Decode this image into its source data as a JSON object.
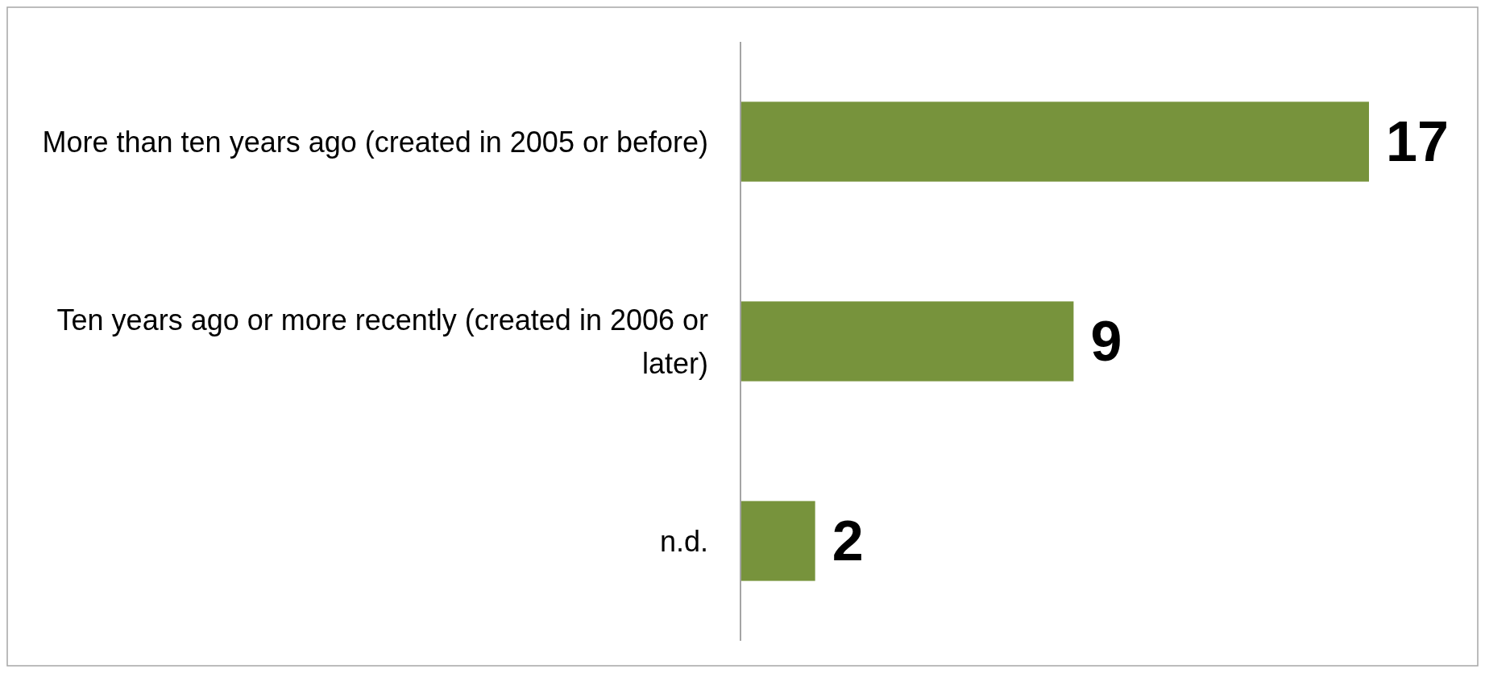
{
  "chart_data": {
    "type": "bar",
    "orientation": "horizontal",
    "categories": [
      "More than ten years ago  (created in 2005 or before)",
      "Ten years ago or more recently (created in 2006 or later)",
      "n.d."
    ],
    "values": [
      17,
      9,
      2
    ],
    "color": "#77933c",
    "data_labels": true
  }
}
